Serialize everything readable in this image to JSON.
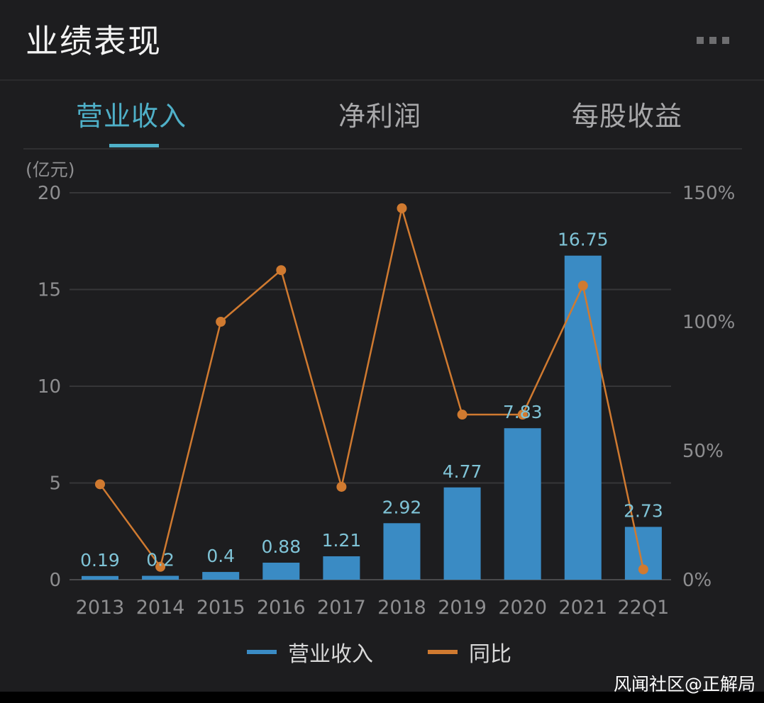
{
  "header": {
    "title": "业绩表现",
    "more_icon": "more-horizontal-icon"
  },
  "tabs": [
    {
      "label": "营业收入",
      "active": true
    },
    {
      "label": "净利润",
      "active": false
    },
    {
      "label": "每股收益",
      "active": false
    }
  ],
  "colors": {
    "accent": "#4fb0c8",
    "bar": "#3a8bc4",
    "line": "#d07a30",
    "bar_label": "#7fc3d6",
    "axis_text": "#8e8e90"
  },
  "chart_data": {
    "type": "bar",
    "categories": [
      "2013",
      "2014",
      "2015",
      "2016",
      "2017",
      "2018",
      "2019",
      "2020",
      "2021",
      "22Q1"
    ],
    "y_unit_label": "(亿元)",
    "ylim": [
      0,
      20
    ],
    "y_ticks": [
      "0",
      "5",
      "10",
      "15",
      "20"
    ],
    "y2lim": [
      0,
      150
    ],
    "y2_ticks": [
      "0%",
      "50%",
      "100%",
      "150%"
    ],
    "grid": true,
    "series": [
      {
        "name": "营业收入",
        "kind": "bar",
        "axis": "left",
        "values": [
          0.19,
          0.2,
          0.4,
          0.88,
          1.21,
          2.92,
          4.77,
          7.83,
          16.75,
          2.73
        ],
        "labels": [
          "0.19",
          "0.2",
          "0.4",
          "0.88",
          "1.21",
          "2.92",
          "4.77",
          "7.83",
          "16.75",
          "2.73"
        ]
      },
      {
        "name": "同比",
        "kind": "line",
        "axis": "right",
        "values": [
          37,
          5,
          100,
          120,
          36,
          144,
          64,
          64,
          114,
          4
        ]
      }
    ],
    "legend": [
      "营业收入",
      "同比"
    ],
    "legend_position": "bottom-center"
  },
  "watermark": "风闻社区@正解局"
}
